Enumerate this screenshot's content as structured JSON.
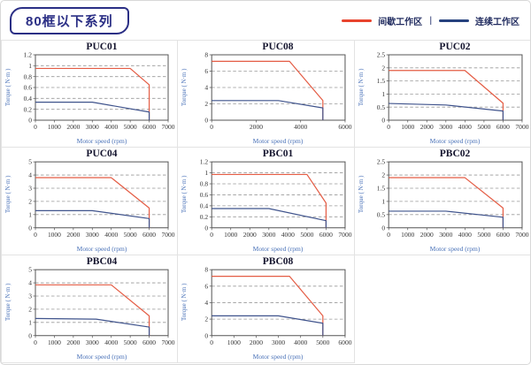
{
  "header": {
    "title": "80框以下系列",
    "legend": {
      "items": [
        {
          "label": "间歇工作区",
          "color": "#e8432d"
        },
        {
          "label": "连续工作区",
          "color": "#26417e"
        }
      ],
      "separator": "|"
    }
  },
  "colors": {
    "intermittent_line": "#e45c44",
    "continuous_line": "#3f538c",
    "grid_line": "#999999",
    "plot_frame": "#555555",
    "tick_text": "#333333",
    "axis_label_text": "#4a72b8",
    "cell_border": "#e3e3e3",
    "header_accent": "#2b2f85"
  },
  "chart_data": [
    {
      "type": "line",
      "title": "PUC01",
      "xlabel": "Motor speed (rpm)",
      "ylabel": "Torque ( N·m )",
      "xlim": [
        0,
        7000
      ],
      "ylim": [
        0,
        1.2
      ],
      "xticks": [
        0,
        1000,
        2000,
        3000,
        4000,
        5000,
        6000,
        7000
      ],
      "yticks": [
        0,
        0.2,
        0.4,
        0.6,
        0.8,
        1,
        1.2
      ],
      "grid": "horizontal-dashed",
      "legend_position": "none",
      "series": [
        {
          "name": "间歇工作区",
          "color": "#e45c44",
          "points": [
            [
              0,
              0.95
            ],
            [
              5000,
              0.95
            ],
            [
              6000,
              0.65
            ],
            [
              6000,
              0
            ]
          ]
        },
        {
          "name": "连续工作区",
          "color": "#3f538c",
          "points": [
            [
              0,
              0.33
            ],
            [
              3000,
              0.33
            ],
            [
              6000,
              0.15
            ],
            [
              6000,
              0
            ]
          ]
        }
      ]
    },
    {
      "type": "line",
      "title": "PUC08",
      "xlabel": "Motor speed (rpm)",
      "ylabel": "Torque ( N·m )",
      "xlim": [
        0,
        6000
      ],
      "ylim": [
        0,
        8
      ],
      "xticks": [
        0,
        2000,
        4000,
        6000
      ],
      "yticks": [
        0,
        2,
        4,
        6,
        8
      ],
      "grid": "horizontal-dashed",
      "legend_position": "none",
      "series": [
        {
          "name": "间歇工作区",
          "color": "#e45c44",
          "points": [
            [
              0,
              7.2
            ],
            [
              3500,
              7.2
            ],
            [
              5000,
              2.4
            ],
            [
              5000,
              0
            ]
          ]
        },
        {
          "name": "连续工作区",
          "color": "#3f538c",
          "points": [
            [
              0,
              2.4
            ],
            [
              3000,
              2.4
            ],
            [
              5000,
              1.5
            ],
            [
              5000,
              0
            ]
          ]
        }
      ]
    },
    {
      "type": "line",
      "title": "PUC02",
      "xlabel": "Motor speed (rpm)",
      "ylabel": "Torque ( N·m )",
      "xlim": [
        0,
        7000
      ],
      "ylim": [
        0,
        2.5
      ],
      "xticks": [
        0,
        1000,
        2000,
        3000,
        4000,
        5000,
        6000,
        7000
      ],
      "yticks": [
        0,
        0.5,
        1,
        1.5,
        2,
        2.5
      ],
      "grid": "horizontal-dashed",
      "legend_position": "none",
      "series": [
        {
          "name": "间歇工作区",
          "color": "#e45c44",
          "points": [
            [
              0,
              1.9
            ],
            [
              4000,
              1.9
            ],
            [
              6000,
              0.65
            ],
            [
              6000,
              0
            ]
          ]
        },
        {
          "name": "连续工作区",
          "color": "#3f538c",
          "points": [
            [
              0,
              0.64
            ],
            [
              3000,
              0.58
            ],
            [
              6000,
              0.35
            ],
            [
              6000,
              0
            ]
          ]
        }
      ]
    },
    {
      "type": "line",
      "title": "PUC04",
      "xlabel": "Motor speed (rpm)",
      "ylabel": "Torque ( N·m )",
      "xlim": [
        0,
        7000
      ],
      "ylim": [
        0,
        5
      ],
      "xticks": [
        0,
        1000,
        2000,
        3000,
        4000,
        5000,
        6000,
        7000
      ],
      "yticks": [
        0,
        1,
        2,
        3,
        4,
        5
      ],
      "grid": "horizontal-dashed",
      "legend_position": "none",
      "series": [
        {
          "name": "间歇工作区",
          "color": "#e45c44",
          "points": [
            [
              0,
              3.8
            ],
            [
              4000,
              3.8
            ],
            [
              6000,
              1.5
            ],
            [
              6000,
              0
            ]
          ]
        },
        {
          "name": "连续工作区",
          "color": "#3f538c",
          "points": [
            [
              0,
              1.3
            ],
            [
              3000,
              1.3
            ],
            [
              6000,
              0.7
            ],
            [
              6000,
              0
            ]
          ]
        }
      ]
    },
    {
      "type": "line",
      "title": "PBC01",
      "xlabel": "Motor speed (rpm)",
      "ylabel": "Torque ( N·m )",
      "xlim": [
        0,
        7000
      ],
      "ylim": [
        0,
        1.2
      ],
      "xticks": [
        0,
        1000,
        2000,
        3000,
        4000,
        5000,
        6000,
        7000
      ],
      "yticks": [
        0,
        0.2,
        0.4,
        0.6,
        0.8,
        1,
        1.2
      ],
      "grid": "horizontal-dashed",
      "legend_position": "none",
      "series": [
        {
          "name": "间歇工作区",
          "color": "#e45c44",
          "points": [
            [
              0,
              0.97
            ],
            [
              5000,
              0.97
            ],
            [
              6000,
              0.45
            ],
            [
              6000,
              0
            ]
          ]
        },
        {
          "name": "连续工作区",
          "color": "#3f538c",
          "points": [
            [
              0,
              0.35
            ],
            [
              3000,
              0.35
            ],
            [
              6000,
              0.13
            ],
            [
              6000,
              0
            ]
          ]
        }
      ]
    },
    {
      "type": "line",
      "title": "PBC02",
      "xlabel": "Motor speed (rpm)",
      "ylabel": "Torque ( N·m )",
      "xlim": [
        0,
        7000
      ],
      "ylim": [
        0,
        2.5
      ],
      "xticks": [
        0,
        1000,
        2000,
        3000,
        4000,
        5000,
        6000,
        7000
      ],
      "yticks": [
        0,
        0.5,
        1,
        1.5,
        2,
        2.5
      ],
      "grid": "horizontal-dashed",
      "legend_position": "none",
      "series": [
        {
          "name": "间歇工作区",
          "color": "#e45c44",
          "points": [
            [
              0,
              1.9
            ],
            [
              4000,
              1.9
            ],
            [
              6000,
              0.75
            ],
            [
              6000,
              0
            ]
          ]
        },
        {
          "name": "连续工作区",
          "color": "#3f538c",
          "points": [
            [
              0,
              0.63
            ],
            [
              3000,
              0.63
            ],
            [
              6000,
              0.4
            ],
            [
              6000,
              0
            ]
          ]
        }
      ]
    },
    {
      "type": "line",
      "title": "PBC04",
      "xlabel": "Motor speed (rpm)",
      "ylabel": "Torque ( N·m )",
      "xlim": [
        0,
        7000
      ],
      "ylim": [
        0,
        5
      ],
      "xticks": [
        0,
        1000,
        2000,
        3000,
        4000,
        5000,
        6000,
        7000
      ],
      "yticks": [
        0,
        1,
        2,
        3,
        4,
        5
      ],
      "grid": "horizontal-dashed",
      "legend_position": "none",
      "series": [
        {
          "name": "间歇工作区",
          "color": "#e45c44",
          "points": [
            [
              0,
              3.85
            ],
            [
              4000,
              3.85
            ],
            [
              6000,
              1.5
            ],
            [
              6000,
              0
            ]
          ]
        },
        {
          "name": "连续工作区",
          "color": "#3f538c",
          "points": [
            [
              0,
              1.3
            ],
            [
              3200,
              1.25
            ],
            [
              6000,
              0.65
            ],
            [
              6000,
              0
            ]
          ]
        }
      ]
    },
    {
      "type": "line",
      "title": "PBC08",
      "xlabel": "Motor speed (rpm)",
      "ylabel": "Torque ( N·m )",
      "xlim": [
        0,
        6000
      ],
      "ylim": [
        0,
        8
      ],
      "xticks": [
        0,
        1000,
        2000,
        3000,
        4000,
        5000,
        6000
      ],
      "yticks": [
        0,
        2,
        4,
        6,
        8
      ],
      "grid": "horizontal-dashed",
      "legend_position": "none",
      "series": [
        {
          "name": "间歇工作区",
          "color": "#e45c44",
          "points": [
            [
              0,
              7.2
            ],
            [
              3500,
              7.2
            ],
            [
              5000,
              2.4
            ],
            [
              5000,
              0
            ]
          ]
        },
        {
          "name": "连续工作区",
          "color": "#3f538c",
          "points": [
            [
              0,
              2.4
            ],
            [
              3000,
              2.4
            ],
            [
              5000,
              1.5
            ],
            [
              5000,
              0
            ]
          ]
        }
      ]
    }
  ]
}
